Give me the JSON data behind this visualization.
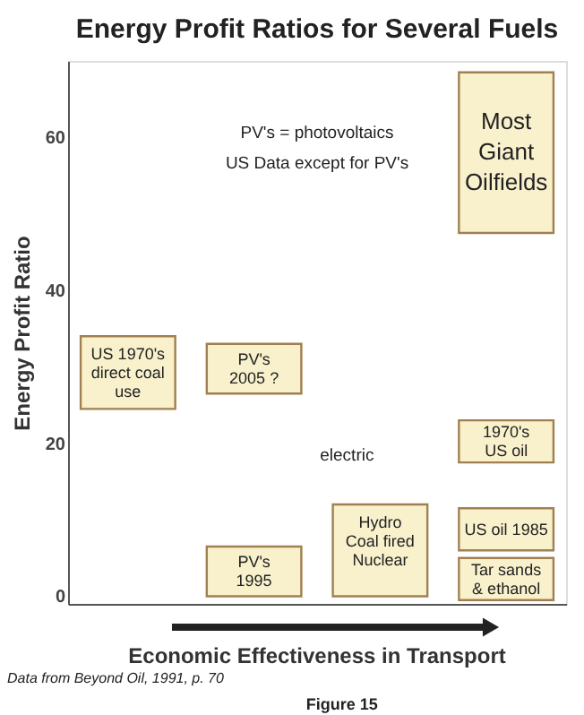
{
  "chart_data": {
    "type": "bar",
    "title": "Energy Profit Ratios for Several Fuels",
    "ylabel": "Energy Profit Ratio",
    "xlabel": "Economic Effectiveness in Transport",
    "categories": [
      null,
      null,
      null,
      null
    ],
    "series": [
      {
        "name": "US 1970's\ndirect coal\nuse",
        "color": "#f8f1cc",
        "values": [
          9.5,
          null,
          null,
          null
        ],
        "base": [
          24.5,
          null,
          null,
          null
        ]
      },
      {
        "name": "PV's\n2005 ?",
        "color": "#f8f1cc",
        "values": [
          null,
          6.5,
          null,
          null
        ],
        "base": [
          null,
          26.5,
          null,
          null
        ]
      },
      {
        "name": "PV's\n1995",
        "color": "#f8f1cc",
        "values": [
          null,
          6.5,
          null,
          null
        ],
        "base": [
          null,
          0,
          null,
          null
        ]
      },
      {
        "name": "Hydro\nCoal fired\n\nNuclear",
        "color": "#f8f1cc",
        "values": [
          null,
          null,
          12,
          null
        ],
        "base": [
          null,
          null,
          0,
          null
        ]
      },
      {
        "name": "Most\nGiant\nOilfields",
        "color": "#f8f1cc",
        "values": [
          null,
          null,
          null,
          21
        ],
        "base": [
          null,
          null,
          null,
          47.5
        ]
      },
      {
        "name": "1970's\nUS oil",
        "color": "#f8f1cc",
        "values": [
          null,
          null,
          null,
          5.5
        ],
        "base": [
          null,
          null,
          null,
          17.5
        ]
      },
      {
        "name": "US oil 1985",
        "color": "#f8f1cc",
        "values": [
          null,
          null,
          null,
          5.5
        ],
        "base": [
          null,
          null,
          null,
          6
        ]
      },
      {
        "name": "Tar sands\n& ethanol",
        "color": "#f8f1cc",
        "values": [
          null,
          null,
          null,
          5.5
        ],
        "base": [
          null,
          null,
          null,
          -0.5
        ]
      }
    ],
    "ylim": [
      -1,
      70
    ],
    "yticks": [
      0,
      20,
      40,
      60
    ],
    "grid": false,
    "tick_labels": "y",
    "annotations": [
      "PV's = photovoltaics",
      "US Data except for PV's",
      "electric",
      "Data from Beyond Oil, 1991, p. 70",
      "Figure 15"
    ]
  }
}
